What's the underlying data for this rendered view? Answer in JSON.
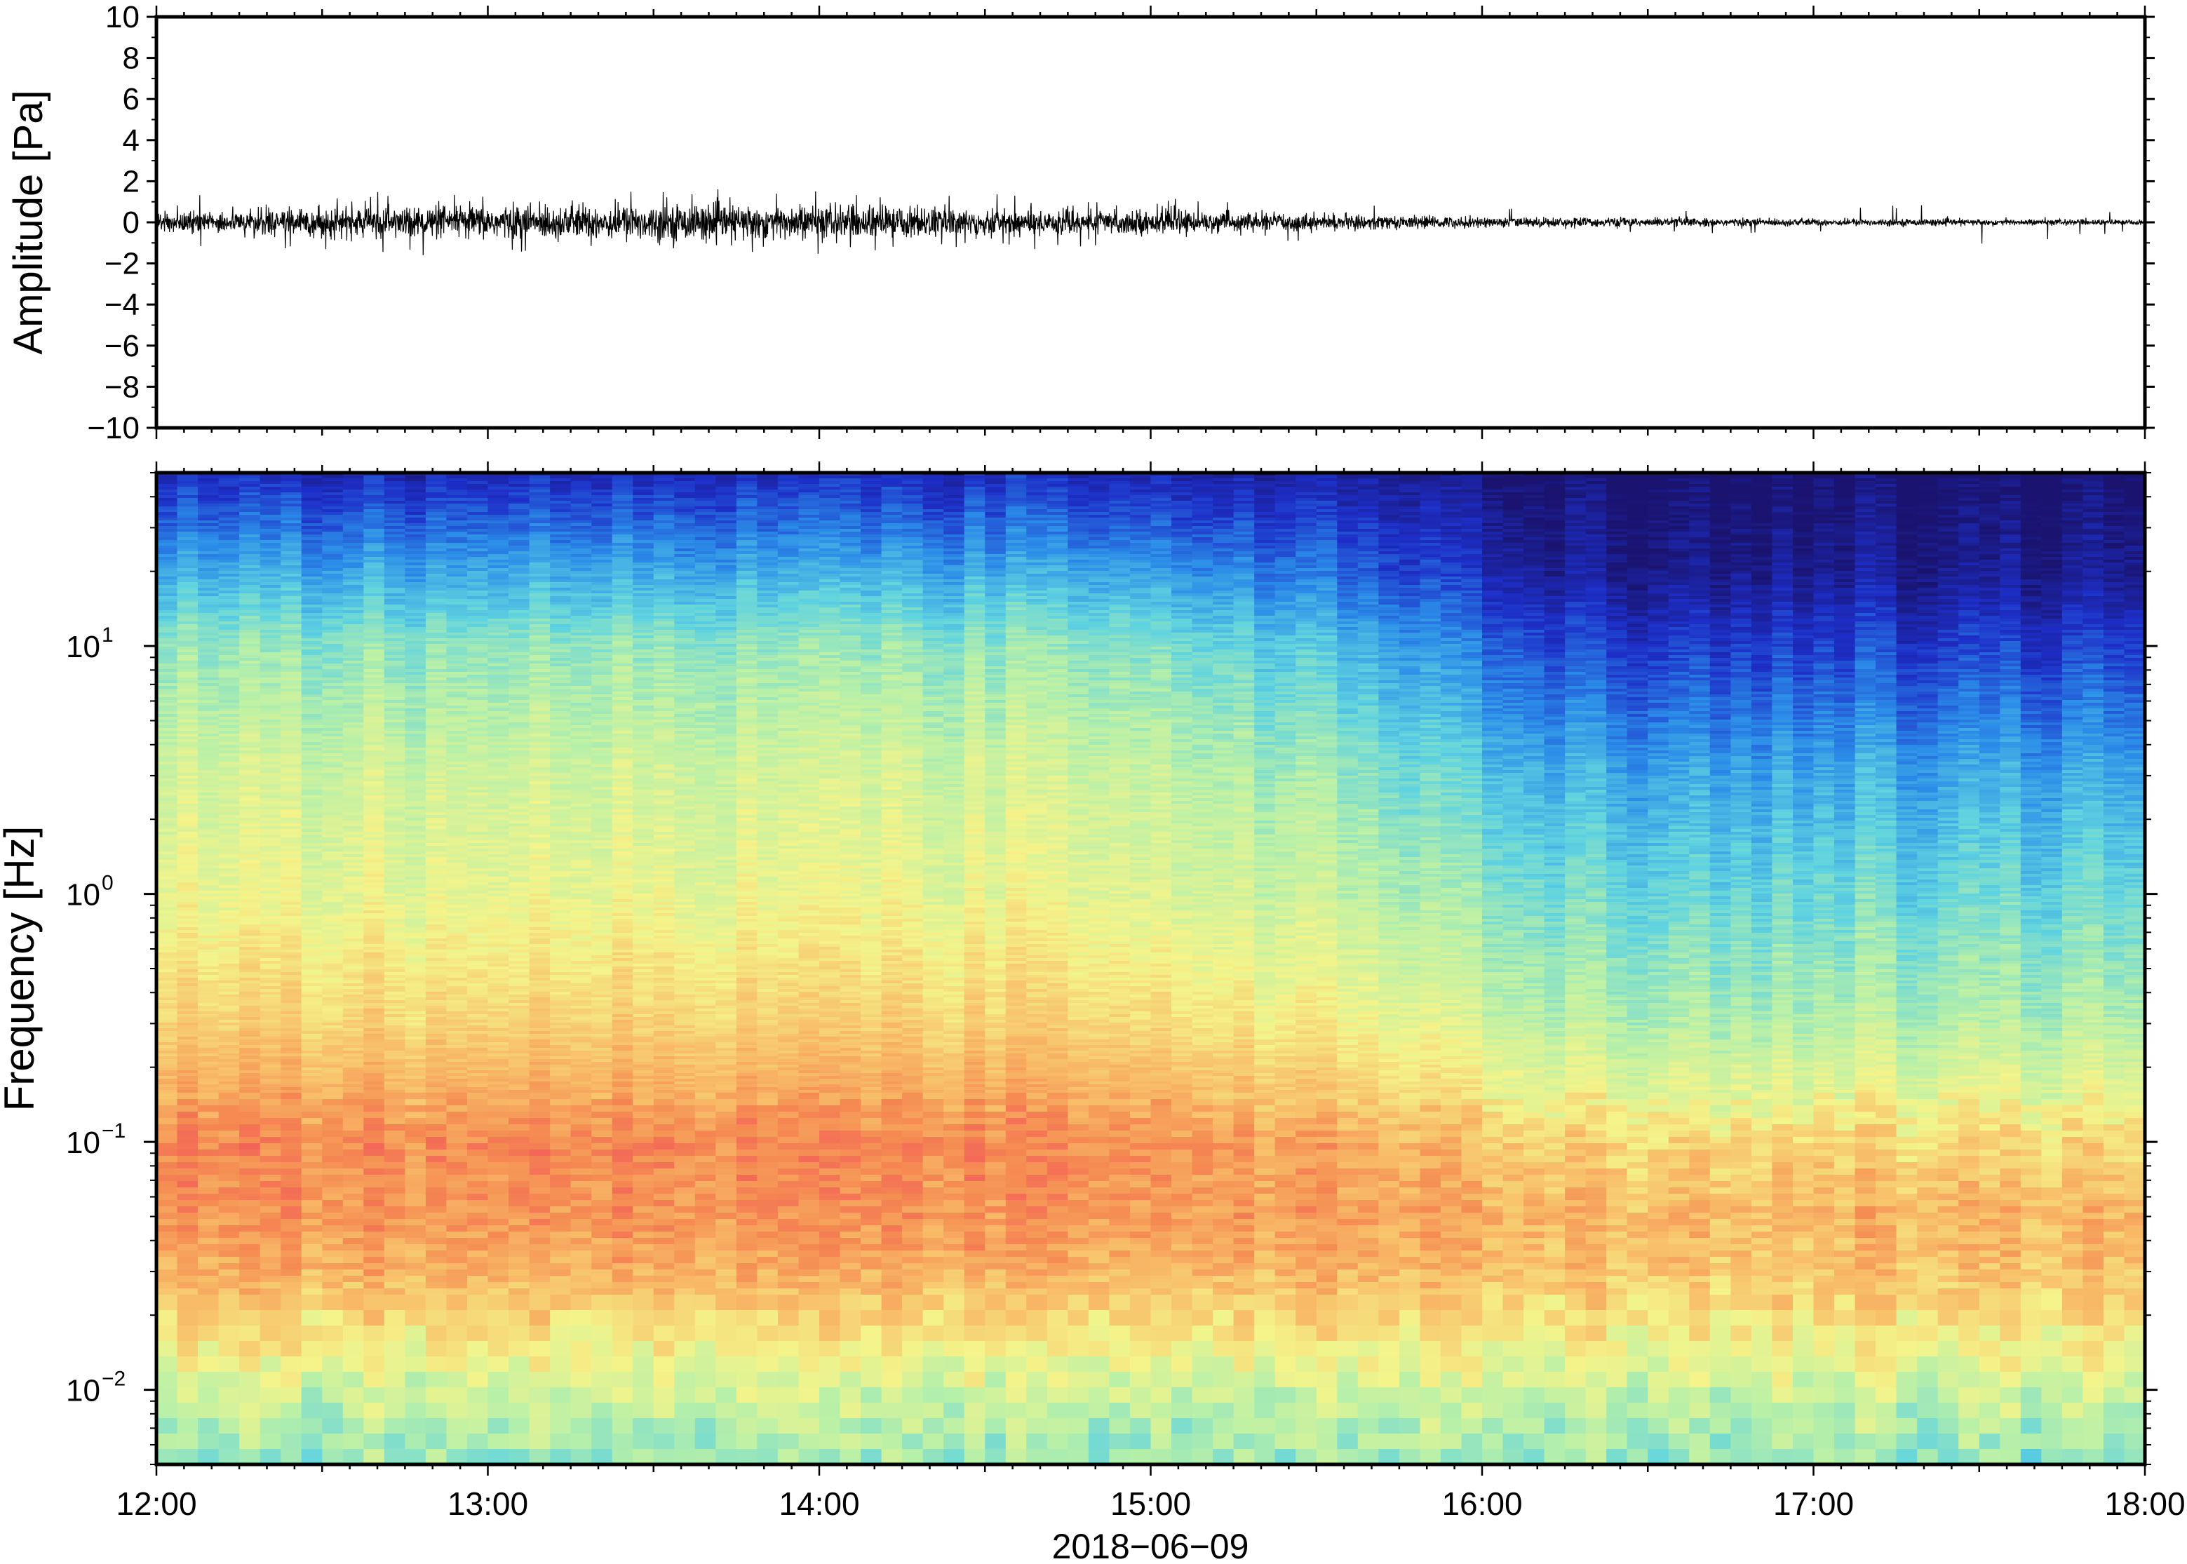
{
  "chart_data": [
    {
      "type": "line",
      "title": "",
      "xlabel": "",
      "ylabel": "Amplitude [Pa]",
      "ylim": [
        -10,
        10
      ],
      "y_ticks": [
        "10",
        "8",
        "6",
        "4",
        "2",
        "0",
        "−2",
        "−4",
        "−6",
        "−8",
        "−10"
      ],
      "y_tick_values": [
        10,
        8,
        6,
        4,
        2,
        0,
        -2,
        -4,
        -6,
        -8,
        -10
      ],
      "xlim_hours": [
        12,
        18
      ],
      "grid": false,
      "series": [
        {
          "values": "waveform envelope (approx. ± Pa)",
          "envelope_hours": [
            12.0,
            12.5,
            13.0,
            13.5,
            14.0,
            14.5,
            15.0,
            15.5,
            16.0,
            16.5,
            17.0,
            17.5,
            18.0
          ],
          "envelope_pa": [
            0.6,
            0.8,
            0.95,
            1.0,
            1.0,
            0.8,
            0.65,
            0.45,
            0.3,
            0.25,
            0.2,
            0.18,
            0.15
          ],
          "peak_pa": [
            1.6,
            1.6,
            1.7,
            1.6,
            1.7,
            1.4,
            1.2,
            1.0,
            0.7,
            0.6,
            0.6,
            1.2,
            0.5
          ]
        }
      ],
      "color": "#000000"
    },
    {
      "type": "heatmap",
      "title": "",
      "xlabel": "2018−06−09",
      "ylabel": "Frequency [Hz]",
      "y_scale": "log",
      "ylim": [
        0.005,
        50
      ],
      "y_ticks": [
        {
          "base": "10",
          "exp": "1",
          "value": 10
        },
        {
          "base": "10",
          "exp": "0",
          "value": 1
        },
        {
          "base": "10",
          "exp": "−1",
          "value": 0.1
        },
        {
          "base": "10",
          "exp": "−2",
          "value": 0.01
        }
      ],
      "x_ticks": [
        "12:00",
        "13:00",
        "14:00",
        "15:00",
        "16:00",
        "17:00",
        "18:00"
      ],
      "x_tick_hours": [
        12,
        13,
        14,
        15,
        16,
        17,
        18
      ],
      "colormap": [
        "#1a1470",
        "#1d2fc8",
        "#2b8ce8",
        "#5fd3e0",
        "#b8f0a8",
        "#f4f48a",
        "#f8c06a",
        "#f58c52",
        "#f2555a"
      ],
      "profile_log10_freq": [
        1.7,
        1.3,
        1.0,
        0.5,
        0.0,
        -0.5,
        -0.8,
        -1.0,
        -1.3,
        -1.5,
        -1.7,
        -2.0,
        -2.3
      ],
      "profile_start_level": [
        0.1,
        0.3,
        0.45,
        0.55,
        0.6,
        0.7,
        0.8,
        0.88,
        0.85,
        0.8,
        0.7,
        0.55,
        0.45
      ],
      "profile_end_level": [
        0.0,
        0.05,
        0.15,
        0.3,
        0.4,
        0.5,
        0.6,
        0.7,
        0.78,
        0.75,
        0.68,
        0.55,
        0.45
      ]
    }
  ]
}
